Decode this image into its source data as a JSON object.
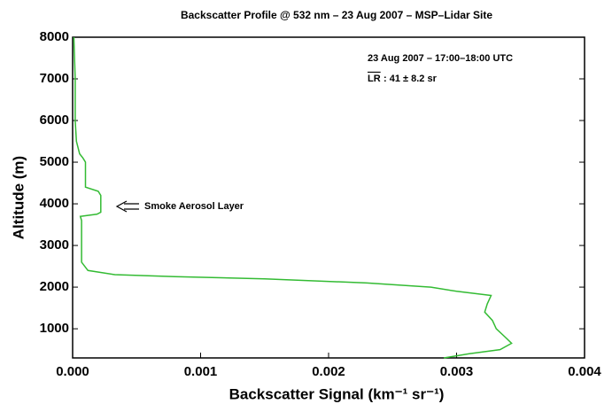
{
  "chart_data": {
    "type": "line",
    "orientation": "horizontal",
    "title": "Backscatter Profile @ 532 nm – 23 Aug 2007 – MSP–Lidar Site",
    "annotations": [
      "23 Aug 2007 – 17:00–18:00 UTC",
      "LR",
      ": 41 ± 8.2 sr",
      "Smoke Aerosol Layer"
    ],
    "x_label": "Backscatter Signal (km⁻¹ sr⁻¹)",
    "y_label": "Altitude (m)",
    "color": "#33bb33",
    "xlim": [
      0,
      0.004
    ],
    "xticks": [
      {
        "value": 0,
        "label": "0.000"
      },
      {
        "value": 0.001,
        "label": "0.001"
      },
      {
        "value": 0.002,
        "label": "0.002"
      },
      {
        "value": 0.003,
        "label": "0.003"
      },
      {
        "value": 0.004,
        "label": "0.004"
      }
    ],
    "ylim": [
      300,
      8000
    ],
    "yticks": [
      1000,
      2000,
      3000,
      4000,
      5000,
      6000,
      7000,
      8000
    ],
    "y": [
      8000,
      7000,
      6000,
      5500,
      5200,
      5100,
      5000,
      4400,
      4300,
      4200,
      3800,
      3750,
      3700,
      3600,
      2600,
      2400,
      2300,
      2250,
      2200,
      2100,
      2000,
      1900,
      1800,
      1600,
      1400,
      1200,
      1000,
      800,
      650,
      500,
      400,
      300
    ],
    "values": [
      1e-05,
      2e-05,
      2e-05,
      3e-05,
      5.5e-05,
      8e-05,
      0.0001,
      0.0001,
      0.0002,
      0.00022,
      0.00022,
      0.00019,
      6e-05,
      7e-05,
      7e-05,
      0.00012,
      0.00033,
      0.0008,
      0.0015,
      0.0023,
      0.0028,
      0.003,
      0.00327,
      0.00324,
      0.00322,
      0.00328,
      0.00331,
      0.00338,
      0.00343,
      0.00334,
      0.0031,
      0.0029
    ]
  }
}
